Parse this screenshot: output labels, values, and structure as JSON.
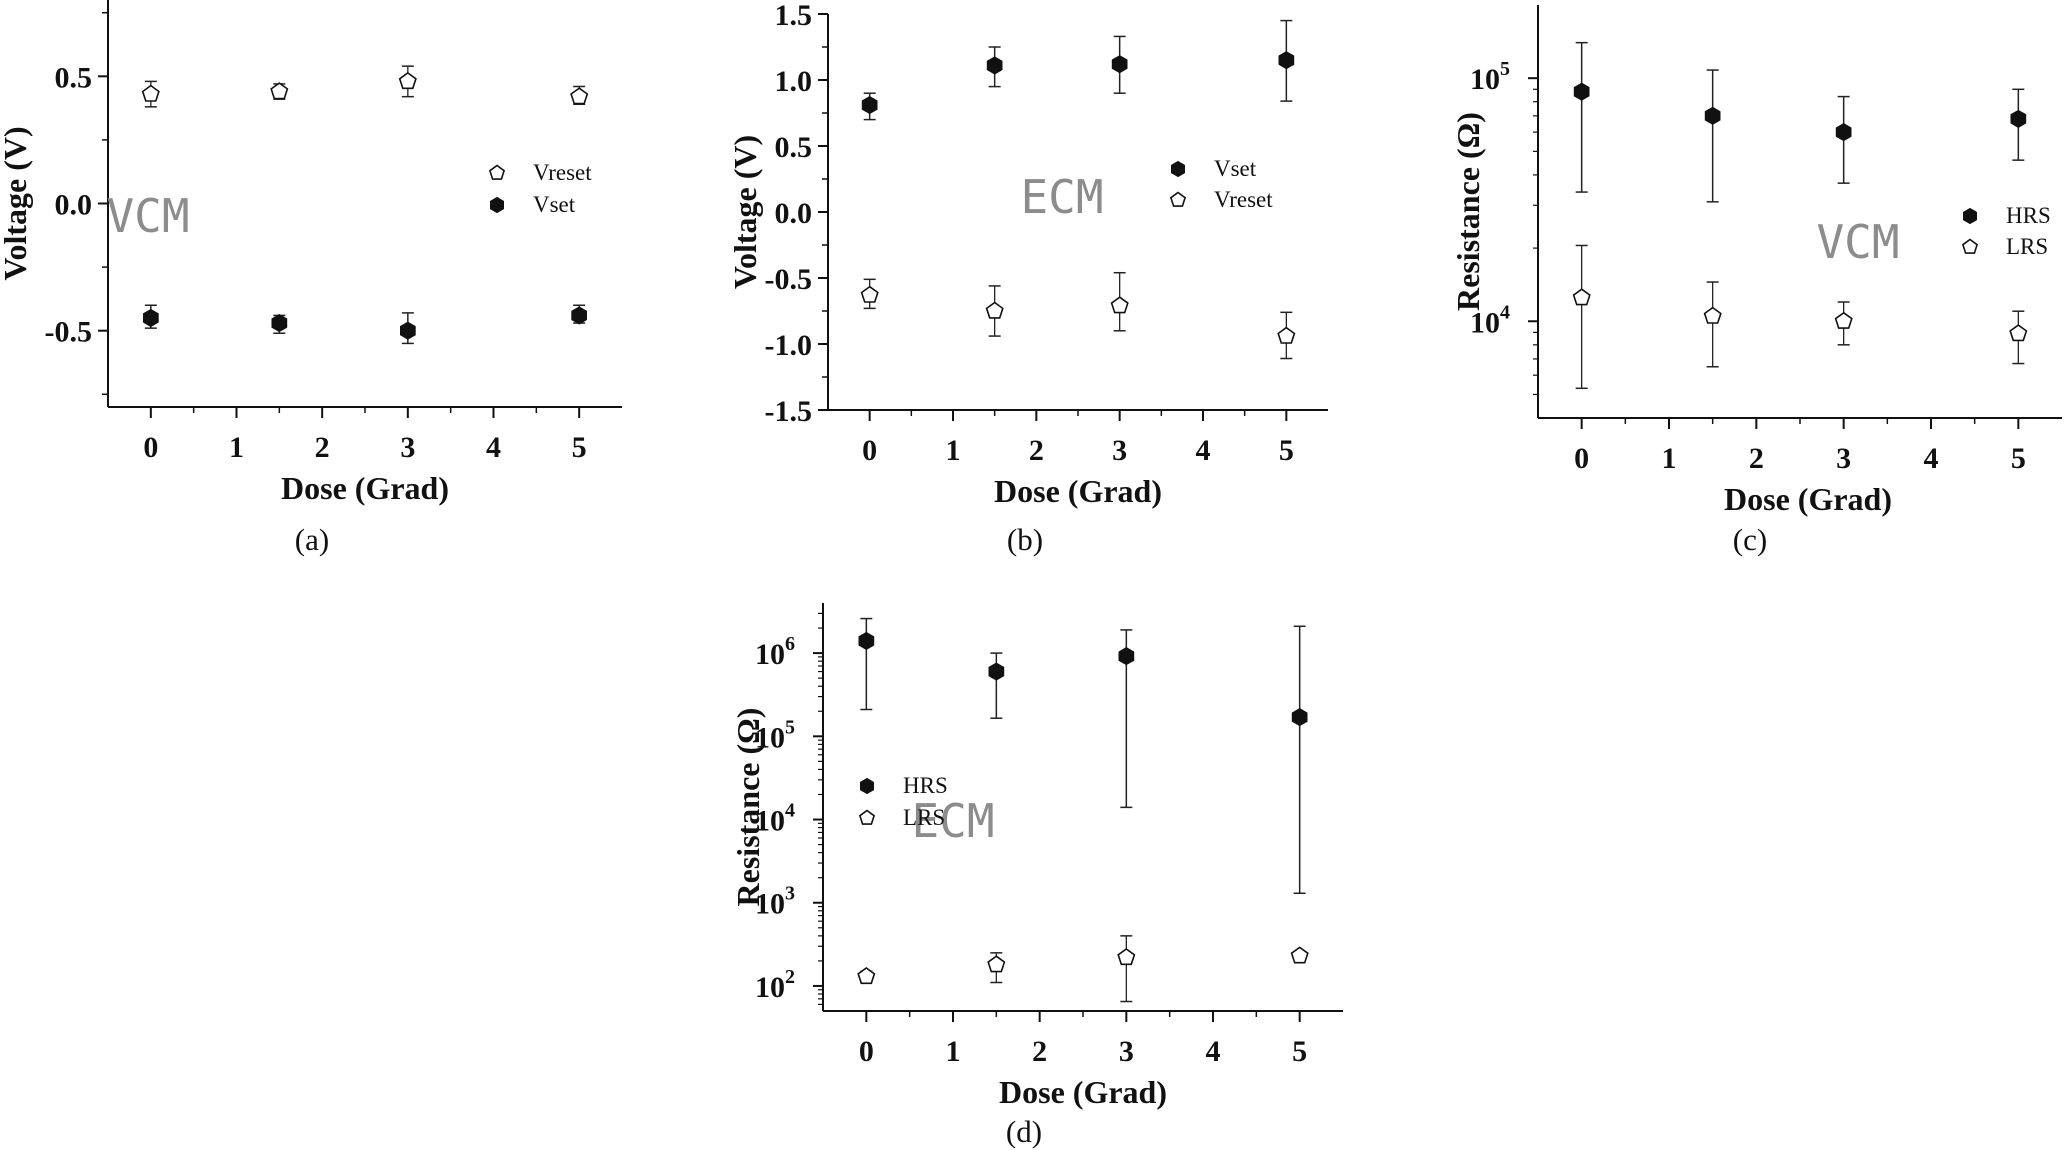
{
  "chart_data": [
    {
      "id": "a",
      "panel_label": "(a)",
      "type": "scatter",
      "annotation": "VCM",
      "xlabel": "Dose (Grad)",
      "ylabel": "Voltage (V)",
      "xlim": [
        -0.5,
        5.5
      ],
      "ylim": [
        -0.8,
        0.8
      ],
      "yscale": "linear",
      "xticks": [
        0,
        1,
        2,
        3,
        4,
        5
      ],
      "yticks": [
        -0.5,
        0.0,
        0.5
      ],
      "ytick_labels": [
        "-0.5",
        "0.0",
        "0.5"
      ],
      "legend_position": "center-right",
      "series": [
        {
          "name": "Vreset",
          "marker": "open-pentagon",
          "x": [
            0,
            1.5,
            3,
            5
          ],
          "y": [
            0.43,
            0.44,
            0.48,
            0.42
          ],
          "yerr_low": [
            0.38,
            0.41,
            0.42,
            0.39
          ],
          "yerr_high": [
            0.48,
            0.47,
            0.54,
            0.46
          ]
        },
        {
          "name": "Vset",
          "marker": "filled-hexagon",
          "x": [
            0,
            1.5,
            3,
            5
          ],
          "y": [
            -0.45,
            -0.47,
            -0.5,
            -0.44
          ],
          "yerr_low": [
            -0.49,
            -0.51,
            -0.55,
            -0.47
          ],
          "yerr_high": [
            -0.4,
            -0.44,
            -0.43,
            -0.4
          ]
        }
      ]
    },
    {
      "id": "b",
      "panel_label": "(b)",
      "type": "scatter",
      "annotation": "ECM",
      "xlabel": "Dose (Grad)",
      "ylabel": "Voltage (V)",
      "xlim": [
        -0.5,
        5.5
      ],
      "ylim": [
        -1.5,
        1.5
      ],
      "yscale": "linear",
      "xticks": [
        0,
        1,
        2,
        3,
        4,
        5
      ],
      "yticks": [
        -1.5,
        -1.0,
        -0.5,
        0.0,
        0.5,
        1.0,
        1.5
      ],
      "ytick_labels": [
        "-1.5",
        "-1.0",
        "-0.5",
        "0.0",
        "0.5",
        "1.0",
        "1.5"
      ],
      "legend_position": "center",
      "series": [
        {
          "name": "Vset",
          "marker": "filled-hexagon",
          "x": [
            0,
            1.5,
            3,
            5
          ],
          "y": [
            0.81,
            1.11,
            1.12,
            1.15
          ],
          "yerr_low": [
            0.7,
            0.95,
            0.9,
            0.84
          ],
          "yerr_high": [
            0.9,
            1.25,
            1.33,
            1.45
          ]
        },
        {
          "name": "Vreset",
          "marker": "open-pentagon",
          "x": [
            0,
            1.5,
            3,
            5
          ],
          "y": [
            -0.63,
            -0.75,
            -0.71,
            -0.94
          ],
          "yerr_low": [
            -0.73,
            -0.94,
            -0.9,
            -1.11
          ],
          "yerr_high": [
            -0.51,
            -0.56,
            -0.46,
            -0.76
          ]
        }
      ]
    },
    {
      "id": "c",
      "panel_label": "(c)",
      "type": "scatter",
      "annotation": "VCM",
      "xlabel": "Dose (Grad)",
      "ylabel": "Resistance (Ω)",
      "xlim": [
        -0.5,
        5.5
      ],
      "ylim": [
        4000,
        200000
      ],
      "yscale": "log",
      "xticks": [
        0,
        1,
        2,
        3,
        4,
        5
      ],
      "yticks": [
        10000,
        100000
      ],
      "ytick_base": [
        "10",
        "10"
      ],
      "ytick_exp": [
        "4",
        "5"
      ],
      "legend_position": "center-right",
      "series": [
        {
          "name": "HRS",
          "marker": "filled-hexagon",
          "x": [
            0,
            1.5,
            3,
            5
          ],
          "y": [
            88000,
            70000,
            60000,
            68000
          ],
          "yerr_low": [
            34000,
            31000,
            37000,
            46000
          ],
          "yerr_high": [
            140000,
            108000,
            84000,
            90000
          ]
        },
        {
          "name": "LRS",
          "marker": "open-pentagon",
          "x": [
            0,
            1.5,
            3,
            5
          ],
          "y": [
            12500,
            10500,
            10000,
            8900
          ],
          "yerr_low": [
            5300,
            6500,
            8000,
            6700
          ],
          "yerr_high": [
            20500,
            14500,
            12000,
            11000
          ]
        }
      ]
    },
    {
      "id": "d",
      "panel_label": "(d)",
      "type": "scatter",
      "annotation": "ECM",
      "xlabel": "Dose (Grad)",
      "ylabel": "Resistance (Ω)",
      "xlim": [
        -0.5,
        5.5
      ],
      "ylim": [
        50,
        4000000
      ],
      "yscale": "log",
      "xticks": [
        0,
        1,
        2,
        3,
        4,
        5
      ],
      "yticks": [
        100,
        1000,
        10000,
        100000,
        1000000
      ],
      "ytick_base": [
        "10",
        "10",
        "10",
        "10",
        "10"
      ],
      "ytick_exp": [
        "2",
        "3",
        "4",
        "5",
        "6"
      ],
      "legend_position": "center-left",
      "series": [
        {
          "name": "HRS",
          "marker": "filled-hexagon",
          "x": [
            0,
            1.5,
            3,
            5
          ],
          "y": [
            1400000,
            600000,
            920000,
            170000
          ],
          "yerr_low": [
            210000,
            165000,
            14000,
            1300
          ],
          "yerr_high": [
            2600000,
            1000000,
            1900000,
            2100000
          ]
        },
        {
          "name": "LRS",
          "marker": "open-pentagon",
          "x": [
            0,
            1.5,
            3,
            5
          ],
          "y": [
            130,
            180,
            220,
            230
          ],
          "yerr_low": [
            110,
            110,
            65,
            210
          ],
          "yerr_high": [
            150,
            250,
            400,
            250
          ]
        }
      ]
    }
  ]
}
